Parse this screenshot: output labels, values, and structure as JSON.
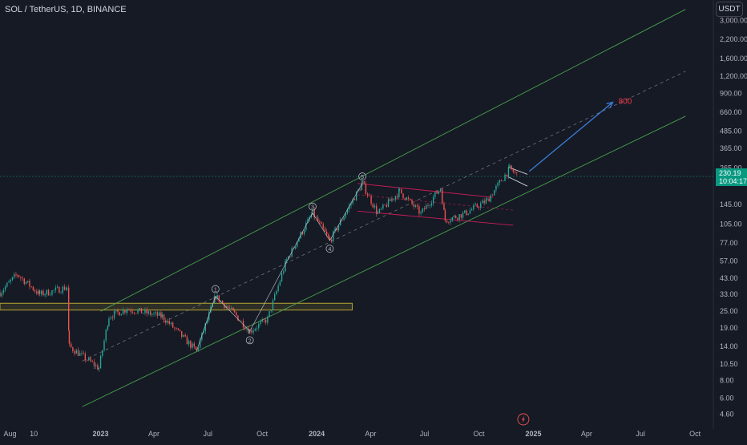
{
  "header": {
    "symbol": "SOL / TetherUS, 1D, BINANCE"
  },
  "currency_button": {
    "label": "USDT"
  },
  "price_tag": {
    "price": "230.19",
    "countdown": "10:04:17"
  },
  "colors": {
    "background": "#161a25",
    "up": "#26a69a",
    "down": "#ef5350",
    "channel": "#4caf50",
    "flag": "#e91e63",
    "target_arrow": "#3a7bd5",
    "target_label": "#f23645",
    "support_zone": "#b5a431",
    "price_line": "#089981"
  },
  "chart_data": {
    "type": "candlestick",
    "scale": "log",
    "y_ticks": [
      "3,000.00",
      "2,200.00",
      "1,600.00",
      "1,200.00",
      "900.00",
      "660.00",
      "485.00",
      "365.00",
      "265.00",
      "145.00",
      "105.00",
      "77.00",
      "57.00",
      "43.00",
      "33.00",
      "25.00",
      "19.00",
      "14.00",
      "10.50",
      "8.00",
      "6.00",
      "4.60"
    ],
    "x_ticks": [
      "Aug",
      "10",
      "2023",
      "Apr",
      "Jul",
      "Oct",
      "2024",
      "Apr",
      "Jul",
      "Oct",
      "2025",
      "Apr",
      "Jul",
      "Oct"
    ],
    "x_range": [
      "2022-07-15",
      "2025-11-01"
    ],
    "price_keypoints": [
      {
        "date": "2022-07-15",
        "price": 34
      },
      {
        "date": "2022-08-13",
        "price": 46
      },
      {
        "date": "2022-09-20",
        "price": 33
      },
      {
        "date": "2022-11-05",
        "price": 37
      },
      {
        "date": "2022-11-09",
        "price": 14
      },
      {
        "date": "2022-12-29",
        "price": 9.8
      },
      {
        "date": "2023-01-15",
        "price": 23
      },
      {
        "date": "2023-02-15",
        "price": 26
      },
      {
        "date": "2023-04-15",
        "price": 23
      },
      {
        "date": "2023-06-12",
        "price": 13
      },
      {
        "date": "2023-07-14",
        "price": 32
      },
      {
        "date": "2023-08-15",
        "price": 24
      },
      {
        "date": "2023-09-10",
        "price": 18
      },
      {
        "date": "2023-10-10",
        "price": 22
      },
      {
        "date": "2023-11-11",
        "price": 58
      },
      {
        "date": "2023-12-25",
        "price": 126
      },
      {
        "date": "2024-01-23",
        "price": 80
      },
      {
        "date": "2024-03-18",
        "price": 205
      },
      {
        "date": "2024-04-13",
        "price": 125
      },
      {
        "date": "2024-05-20",
        "price": 180
      },
      {
        "date": "2024-06-25",
        "price": 125
      },
      {
        "date": "2024-07-28",
        "price": 190
      },
      {
        "date": "2024-08-05",
        "price": 112
      },
      {
        "date": "2024-09-07",
        "price": 125
      },
      {
        "date": "2024-10-15",
        "price": 155
      },
      {
        "date": "2024-11-22",
        "price": 262
      },
      {
        "date": "2024-12-06",
        "price": 232
      }
    ],
    "wave_labels": [
      {
        "label": "1",
        "date": "2023-07-14",
        "price": 36
      },
      {
        "label": "2",
        "date": "2023-09-10",
        "price": 15.5
      },
      {
        "label": "3",
        "date": "2023-12-25",
        "price": 140
      },
      {
        "label": "4",
        "date": "2024-01-23",
        "price": 70
      },
      {
        "label": "5",
        "date": "2024-03-18",
        "price": 230
      }
    ],
    "annotations": [
      {
        "label": "800",
        "date": "2025-05-22",
        "price": 800
      }
    ],
    "channel_upper": [
      {
        "date": "2023-01-01",
        "price": 25
      },
      {
        "date": "2025-09-15",
        "price": 3600
      }
    ],
    "channel_middle": [
      {
        "date": "2022-12-01",
        "price": 11
      },
      {
        "date": "2025-09-15",
        "price": 1300
      }
    ],
    "channel_lower": [
      {
        "date": "2022-12-01",
        "price": 5.2
      },
      {
        "date": "2025-09-15",
        "price": 620
      }
    ],
    "support_zone": [
      25.5,
      28.5
    ],
    "last_price": 230.19
  }
}
